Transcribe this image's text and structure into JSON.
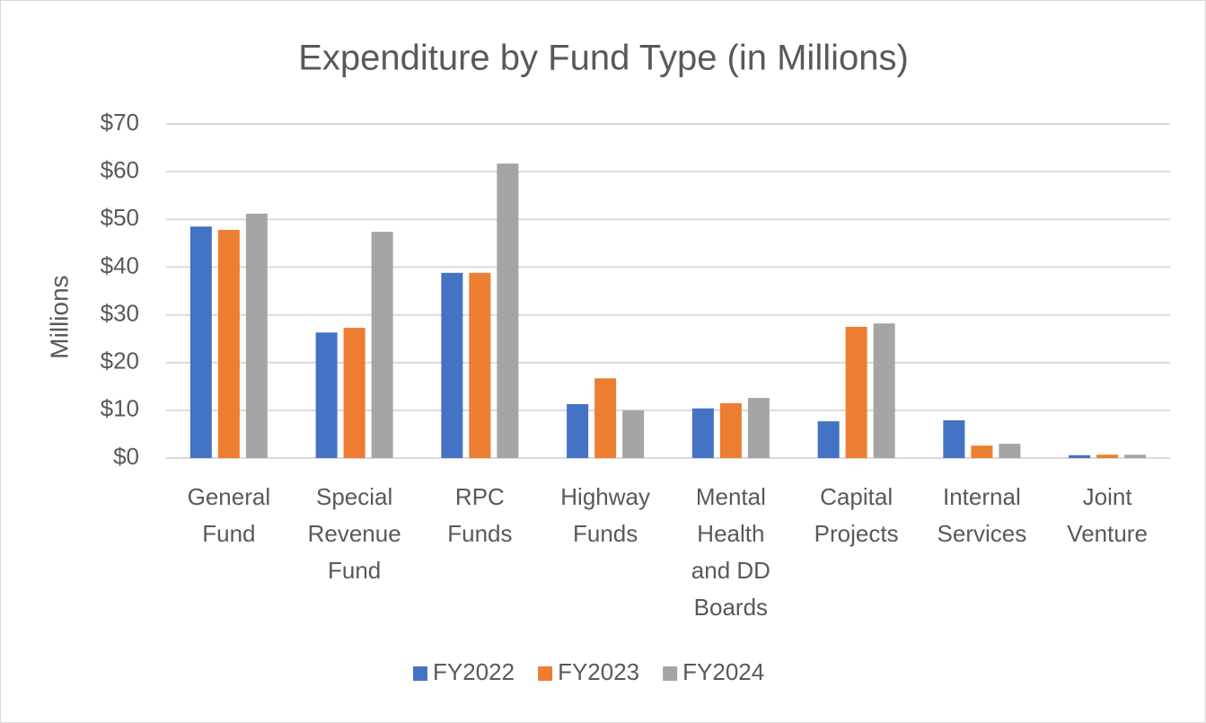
{
  "chart_data": {
    "type": "bar",
    "title": "Expenditure by Fund Type (in Millions)",
    "y_label": "Millions",
    "categories": [
      "General Fund",
      "Special Revenue Fund",
      "RPC Funds",
      "Highway Funds",
      "Mental Health and DD Boards",
      "Capital Projects",
      "Internal Services",
      "Joint Venture"
    ],
    "series": [
      {
        "name": "FY2022",
        "color": "#4472c4",
        "values": [
          48.5,
          26.3,
          38.8,
          11.3,
          10.4,
          7.7,
          7.9,
          0.6
        ]
      },
      {
        "name": "FY2023",
        "color": "#ed7d31",
        "values": [
          47.8,
          27.3,
          38.8,
          16.7,
          11.5,
          27.5,
          2.6,
          0.7
        ]
      },
      {
        "name": "FY2024",
        "color": "#a5a5a5",
        "values": [
          51.2,
          47.4,
          61.7,
          10.0,
          12.6,
          28.2,
          3.0,
          0.7
        ]
      }
    ],
    "ylim": [
      0,
      70
    ],
    "yticks": [
      {
        "value": 0,
        "label": "$0"
      },
      {
        "value": 10,
        "label": "$10"
      },
      {
        "value": 20,
        "label": "$20"
      },
      {
        "value": 30,
        "label": "$30"
      },
      {
        "value": 40,
        "label": "$40"
      },
      {
        "value": 50,
        "label": "$50"
      },
      {
        "value": 60,
        "label": "$60"
      },
      {
        "value": 70,
        "label": "$70"
      }
    ],
    "grid": true,
    "legend": "bottom"
  }
}
